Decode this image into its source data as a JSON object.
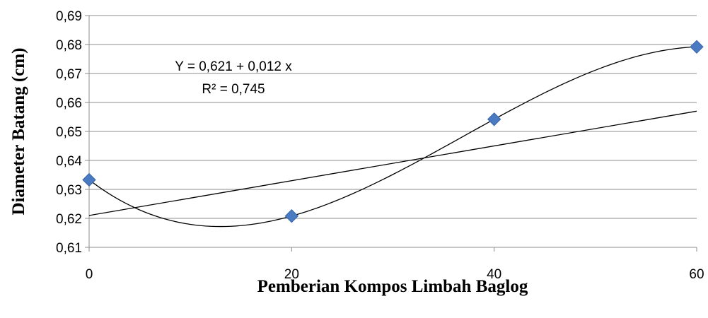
{
  "chart_data": {
    "type": "scatter",
    "xlabel": "Pemberian Kompos Limbah Baglog",
    "ylabel": "Diameter Batang (cm)",
    "xlim": [
      0,
      60
    ],
    "ylim": [
      0.61,
      0.69
    ],
    "x_ticks": [
      0,
      20,
      40,
      60
    ],
    "x_tick_labels": [
      "0",
      "20",
      "40",
      "60"
    ],
    "y_ticks": [
      0.61,
      0.62,
      0.63,
      0.64,
      0.65,
      0.66,
      0.67,
      0.68,
      0.69
    ],
    "y_tick_labels": [
      "0,61",
      "0,62",
      "0,63",
      "0,64",
      "0,65",
      "0,66",
      "0,67",
      "0,68",
      "0,69"
    ],
    "grid": "horizontal",
    "series": [
      {
        "x": [
          0,
          20,
          40,
          60
        ],
        "y": [
          0.6333,
          0.6208,
          0.6542,
          0.6792
        ],
        "marker": "diamond",
        "color": "#4a7ac2"
      }
    ],
    "trendline": {
      "type": "linear",
      "intercept": 0.621,
      "slope": 0.012,
      "color": "#000000"
    },
    "smooth_line": {
      "color": "#000000"
    },
    "annotations": {
      "equation": "Y = 0,621 + 0,012 x",
      "r_squared": "R² = 0,745"
    }
  }
}
